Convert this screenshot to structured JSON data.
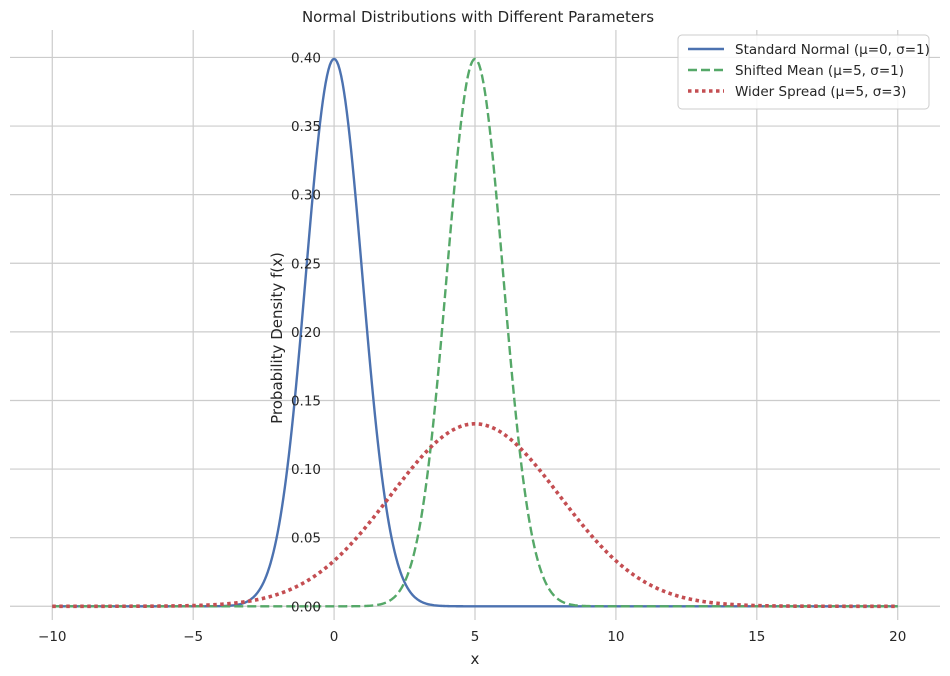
{
  "chart_data": {
    "type": "line",
    "title": "Normal Distributions with Different Parameters",
    "xlabel": "x",
    "ylabel": "Probability Density f(x)",
    "xlim": [
      -11.5,
      21.5
    ],
    "ylim": [
      -0.01,
      0.42
    ],
    "x_ticks": [
      -10,
      -5,
      0,
      5,
      10,
      15,
      20
    ],
    "x_tick_labels": [
      "−10",
      "−5",
      "0",
      "5",
      "10",
      "15",
      "20"
    ],
    "y_ticks": [
      0.0,
      0.05,
      0.1,
      0.15,
      0.2,
      0.25,
      0.3,
      0.35,
      0.4
    ],
    "y_tick_labels": [
      "0.00",
      "0.05",
      "0.10",
      "0.15",
      "0.20",
      "0.25",
      "0.30",
      "0.35",
      "0.40"
    ],
    "grid": true,
    "legend_position": "top-right",
    "x_range": [
      -10,
      20
    ],
    "series": [
      {
        "name": "Standard Normal (μ=0, σ=1)",
        "mu": 0,
        "sigma": 1,
        "color": "#4c72b0",
        "style": "solid"
      },
      {
        "name": "Shifted Mean (μ=5, σ=1)",
        "mu": 5,
        "sigma": 1,
        "color": "#55a868",
        "style": "dashed"
      },
      {
        "name": "Wider Spread (μ=5, σ=3)",
        "mu": 5,
        "sigma": 3,
        "color": "#c44e52",
        "style": "dotted"
      }
    ]
  }
}
